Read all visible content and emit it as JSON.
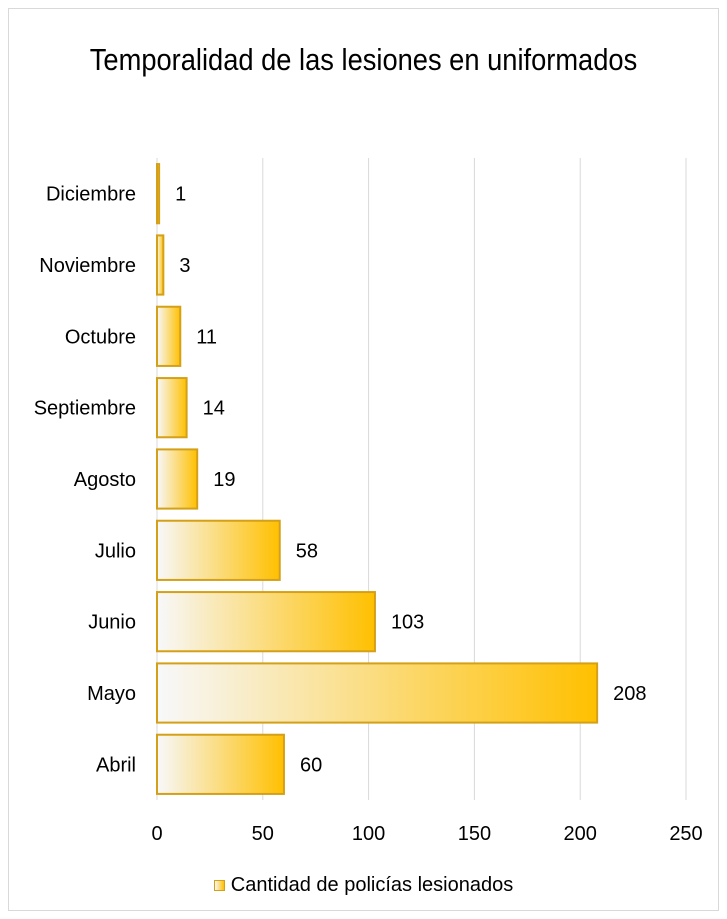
{
  "chart_data": {
    "type": "bar",
    "orientation": "horizontal",
    "title": "Temporalidad de las lesiones en uniformados",
    "categories": [
      "Diciembre",
      "Noviembre",
      "Octubre",
      "Septiembre",
      "Agosto",
      "Julio",
      "Junio",
      "Mayo",
      "Abril"
    ],
    "series": [
      {
        "name": "Cantidad de policías lesionados",
        "values": [
          1,
          3,
          11,
          14,
          19,
          58,
          103,
          208,
          60
        ]
      }
    ],
    "xlim": [
      0,
      250
    ],
    "xticks": [
      0,
      50,
      100,
      150,
      200,
      250
    ],
    "grid": true,
    "legend_position": "bottom",
    "colors": {
      "bar_end": "#ffc000",
      "bar_start": "#f7f8fb",
      "bar_border": "#d4a017",
      "grid": "#d9d9d9"
    }
  }
}
